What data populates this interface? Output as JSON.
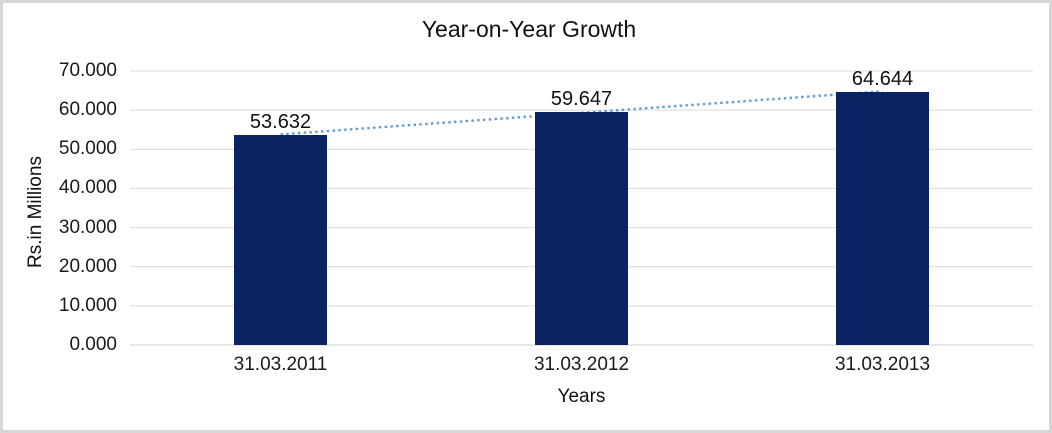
{
  "chart_data": {
    "type": "bar",
    "title": "Year-on-Year Growth",
    "xlabel": "Years",
    "ylabel": "Rs.in Millions",
    "categories": [
      "31.03.2011",
      "31.03.2012",
      "31.03.2013"
    ],
    "values": [
      53632,
      59647,
      64644
    ],
    "value_labels": [
      "53.632",
      "59.647",
      "64.644"
    ],
    "y_tick_labels": [
      "0.000",
      "10.000",
      "20.000",
      "30.000",
      "40.000",
      "50.000",
      "60.000",
      "70.000"
    ],
    "ylim": [
      0,
      70000
    ],
    "y_tick_step": 10000,
    "grid": true,
    "legend": "none",
    "bar_color": "#0a2463",
    "trendline": {
      "type": "linear",
      "style": "dotted",
      "color": "#5b9bd5"
    },
    "gridline_color": "#d9d9d9",
    "axis_line_color": "#cccccc",
    "border_color": "#d7d7da",
    "text_color": "#1a1a1a"
  }
}
